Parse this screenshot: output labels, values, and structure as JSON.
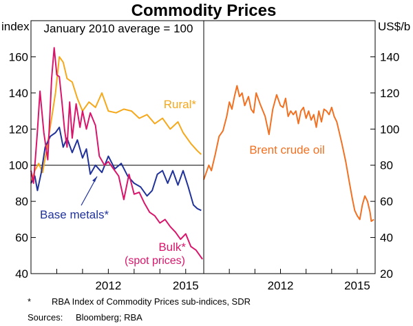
{
  "chart_data": {
    "type": "line",
    "title": "Commodity Prices",
    "notes": [
      "*",
      "RBA Index of Commodity Prices sub-indices, SDR"
    ],
    "sources_label": "Sources:",
    "sources": "Bloomberg; RBA",
    "panels": [
      {
        "name": "left",
        "ylabel": "index",
        "ylim": [
          40,
          180
        ],
        "yticks": [
          40,
          60,
          80,
          100,
          120,
          140,
          160
        ],
        "xlim": [
          2009.0,
          2015.7
        ],
        "xticks": [
          {
            "label": "2012",
            "value": 2012.0
          },
          {
            "label": "2015",
            "value": 2015.0
          }
        ],
        "annotation": "January 2010 average = 100",
        "reference_line": 100,
        "series": [
          {
            "name": "Rural*",
            "color": "#f6a81b",
            "points": [
              [
                2009.0,
                90
              ],
              [
                2009.15,
                97
              ],
              [
                2009.3,
                101
              ],
              [
                2009.45,
                96
              ],
              [
                2009.6,
                108
              ],
              [
                2009.8,
                126
              ],
              [
                2009.95,
                140
              ],
              [
                2010.1,
                160
              ],
              [
                2010.25,
                157
              ],
              [
                2010.4,
                148
              ],
              [
                2010.6,
                146
              ],
              [
                2010.8,
                137
              ],
              [
                2011.0,
                130
              ],
              [
                2011.25,
                135
              ],
              [
                2011.5,
                132
              ],
              [
                2011.75,
                140
              ],
              [
                2012.0,
                130
              ],
              [
                2012.3,
                129
              ],
              [
                2012.6,
                131
              ],
              [
                2012.9,
                130
              ],
              [
                2013.2,
                126
              ],
              [
                2013.5,
                128
              ],
              [
                2013.8,
                123
              ],
              [
                2014.1,
                126
              ],
              [
                2014.4,
                120
              ],
              [
                2014.7,
                124
              ],
              [
                2014.9,
                118
              ],
              [
                2015.2,
                112
              ],
              [
                2015.45,
                108
              ],
              [
                2015.6,
                106
              ]
            ]
          },
          {
            "name": "Base metals*",
            "color": "#20329a",
            "points": [
              [
                2009.0,
                90
              ],
              [
                2009.15,
                94
              ],
              [
                2009.25,
                86
              ],
              [
                2009.4,
                96
              ],
              [
                2009.55,
                110
              ],
              [
                2009.75,
                116
              ],
              [
                2009.95,
                118
              ],
              [
                2010.1,
                121
              ],
              [
                2010.25,
                110
              ],
              [
                2010.4,
                115
              ],
              [
                2010.6,
                107
              ],
              [
                2010.8,
                114
              ],
              [
                2011.0,
                104
              ],
              [
                2011.15,
                109
              ],
              [
                2011.3,
                95
              ],
              [
                2011.5,
                100
              ],
              [
                2011.75,
                96
              ],
              [
                2012.0,
                105
              ],
              [
                2012.25,
                98
              ],
              [
                2012.5,
                101
              ],
              [
                2012.75,
                94
              ],
              [
                2013.0,
                90
              ],
              [
                2013.25,
                88
              ],
              [
                2013.5,
                83
              ],
              [
                2013.7,
                86
              ],
              [
                2013.9,
                95
              ],
              [
                2014.1,
                97
              ],
              [
                2014.3,
                90
              ],
              [
                2014.5,
                97
              ],
              [
                2014.7,
                89
              ],
              [
                2014.9,
                97
              ],
              [
                2015.1,
                88
              ],
              [
                2015.3,
                78
              ],
              [
                2015.45,
                76
              ],
              [
                2015.6,
                75
              ]
            ]
          },
          {
            "name": "Bulk*",
            "subtitle": "(spot prices)",
            "color": "#d8156a",
            "points": [
              [
                2009.0,
                97
              ],
              [
                2009.1,
                90
              ],
              [
                2009.25,
                119
              ],
              [
                2009.35,
                141
              ],
              [
                2009.5,
                118
              ],
              [
                2009.65,
                103
              ],
              [
                2009.8,
                148
              ],
              [
                2009.9,
                165
              ],
              [
                2010.0,
                150
              ],
              [
                2010.1,
                149
              ],
              [
                2010.2,
                135
              ],
              [
                2010.3,
                120
              ],
              [
                2010.4,
                110
              ],
              [
                2010.5,
                135
              ],
              [
                2010.6,
                115
              ],
              [
                2010.75,
                134
              ],
              [
                2010.9,
                121
              ],
              [
                2011.0,
                130
              ],
              [
                2011.15,
                120
              ],
              [
                2011.3,
                129
              ],
              [
                2011.5,
                122
              ],
              [
                2011.65,
                105
              ],
              [
                2011.85,
                100
              ],
              [
                2012.0,
                102
              ],
              [
                2012.2,
                98
              ],
              [
                2012.4,
                94
              ],
              [
                2012.6,
                81
              ],
              [
                2012.8,
                95
              ],
              [
                2013.0,
                84
              ],
              [
                2013.2,
                85
              ],
              [
                2013.4,
                79
              ],
              [
                2013.6,
                74
              ],
              [
                2013.8,
                72
              ],
              [
                2014.0,
                68
              ],
              [
                2014.2,
                70
              ],
              [
                2014.4,
                66
              ],
              [
                2014.6,
                63
              ],
              [
                2014.8,
                59
              ],
              [
                2015.0,
                62
              ],
              [
                2015.2,
                55
              ],
              [
                2015.4,
                53
              ],
              [
                2015.55,
                50
              ],
              [
                2015.65,
                48
              ]
            ]
          }
        ]
      },
      {
        "name": "right",
        "ylabel": "US$/b",
        "ylim": [
          20,
          160
        ],
        "yticks": [
          20,
          40,
          60,
          80,
          100,
          120,
          140
        ],
        "xlim": [
          2009.0,
          2015.7
        ],
        "xticks": [
          {
            "label": "2012",
            "value": 2012.0
          },
          {
            "label": "2015",
            "value": 2015.0
          }
        ],
        "series": [
          {
            "name": "Brent crude oil",
            "color": "#f27021",
            "points": [
              [
                2009.0,
                72
              ],
              [
                2009.1,
                76
              ],
              [
                2009.2,
                80
              ],
              [
                2009.3,
                77
              ],
              [
                2009.45,
                86
              ],
              [
                2009.6,
                96
              ],
              [
                2009.75,
                99
              ],
              [
                2009.9,
                107
              ],
              [
                2010.0,
                115
              ],
              [
                2010.1,
                111
              ],
              [
                2010.2,
                118
              ],
              [
                2010.3,
                124
              ],
              [
                2010.4,
                118
              ],
              [
                2010.5,
                120
              ],
              [
                2010.6,
                113
              ],
              [
                2010.75,
                118
              ],
              [
                2010.85,
                111
              ],
              [
                2010.95,
                109
              ],
              [
                2011.05,
                120
              ],
              [
                2011.2,
                114
              ],
              [
                2011.4,
                107
              ],
              [
                2011.55,
                97
              ],
              [
                2011.7,
                111
              ],
              [
                2011.85,
                119
              ],
              [
                2012.0,
                113
              ],
              [
                2012.1,
                112
              ],
              [
                2012.2,
                117
              ],
              [
                2012.3,
                107
              ],
              [
                2012.4,
                110
              ],
              [
                2012.5,
                108
              ],
              [
                2012.6,
                110
              ],
              [
                2012.7,
                103
              ],
              [
                2012.8,
                110
              ],
              [
                2012.9,
                112
              ],
              [
                2013.0,
                106
              ],
              [
                2013.1,
                110
              ],
              [
                2013.2,
                105
              ],
              [
                2013.3,
                108
              ],
              [
                2013.4,
                101
              ],
              [
                2013.5,
                110
              ],
              [
                2013.6,
                104
              ],
              [
                2013.7,
                111
              ],
              [
                2013.8,
                110
              ],
              [
                2013.9,
                108
              ],
              [
                2014.0,
                112
              ],
              [
                2014.1,
                107
              ],
              [
                2014.2,
                104
              ],
              [
                2014.4,
                92
              ],
              [
                2014.55,
                82
              ],
              [
                2014.7,
                70
              ],
              [
                2014.8,
                62
              ],
              [
                2014.9,
                55
              ],
              [
                2015.0,
                52
              ],
              [
                2015.1,
                50
              ],
              [
                2015.2,
                58
              ],
              [
                2015.3,
                63
              ],
              [
                2015.4,
                60
              ],
              [
                2015.5,
                54
              ],
              [
                2015.55,
                49
              ],
              [
                2015.65,
                50
              ]
            ]
          }
        ]
      }
    ]
  }
}
